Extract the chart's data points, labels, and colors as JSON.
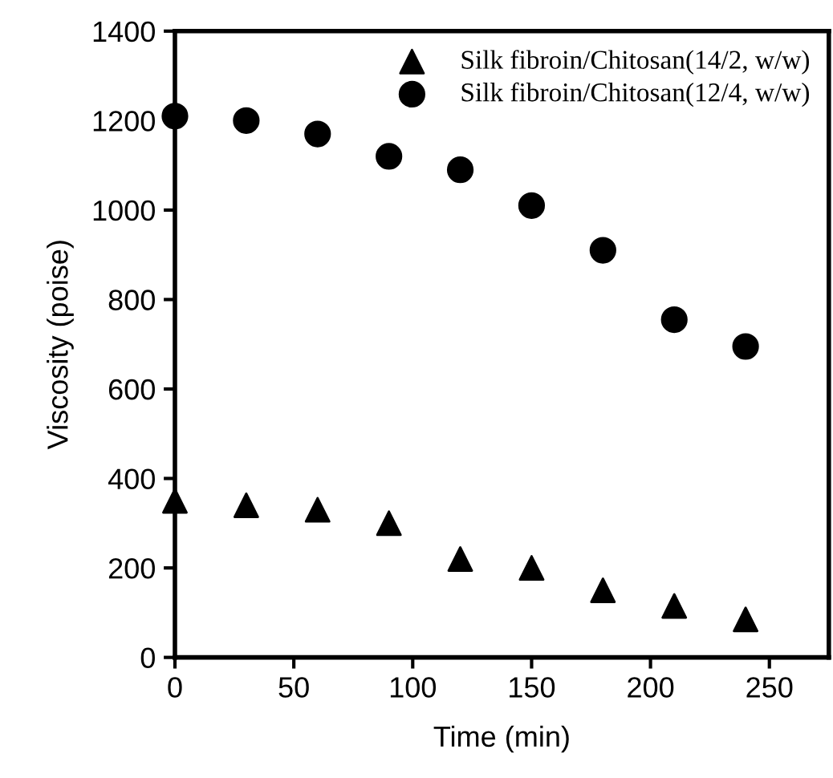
{
  "chart_data": {
    "type": "scatter",
    "xlabel": "Time (min)",
    "ylabel": "Viscosity (poise)",
    "xlim": [
      0,
      275
    ],
    "xticks": [
      0,
      50,
      100,
      150,
      200,
      250
    ],
    "ylim": [
      0,
      1400
    ],
    "yticks": [
      0,
      200,
      400,
      600,
      800,
      1000,
      1200,
      1400
    ],
    "grid": false,
    "legend": "top right",
    "series": [
      {
        "name": "Silk fibroin/Chitosan(14/2, w/w)",
        "color": "#000000",
        "marker": "triangle",
        "x": [
          0,
          30,
          60,
          90,
          120,
          150,
          180,
          210,
          240
        ],
        "values": [
          350,
          340,
          330,
          300,
          220,
          200,
          150,
          115,
          85
        ]
      },
      {
        "name": "Silk fibroin/Chitosan(12/4, w/w)",
        "color": "#000000",
        "marker": "circle",
        "x": [
          0,
          30,
          60,
          90,
          120,
          150,
          180,
          210,
          240
        ],
        "values": [
          1210,
          1200,
          1170,
          1120,
          1090,
          1010,
          910,
          755,
          695
        ]
      }
    ]
  }
}
